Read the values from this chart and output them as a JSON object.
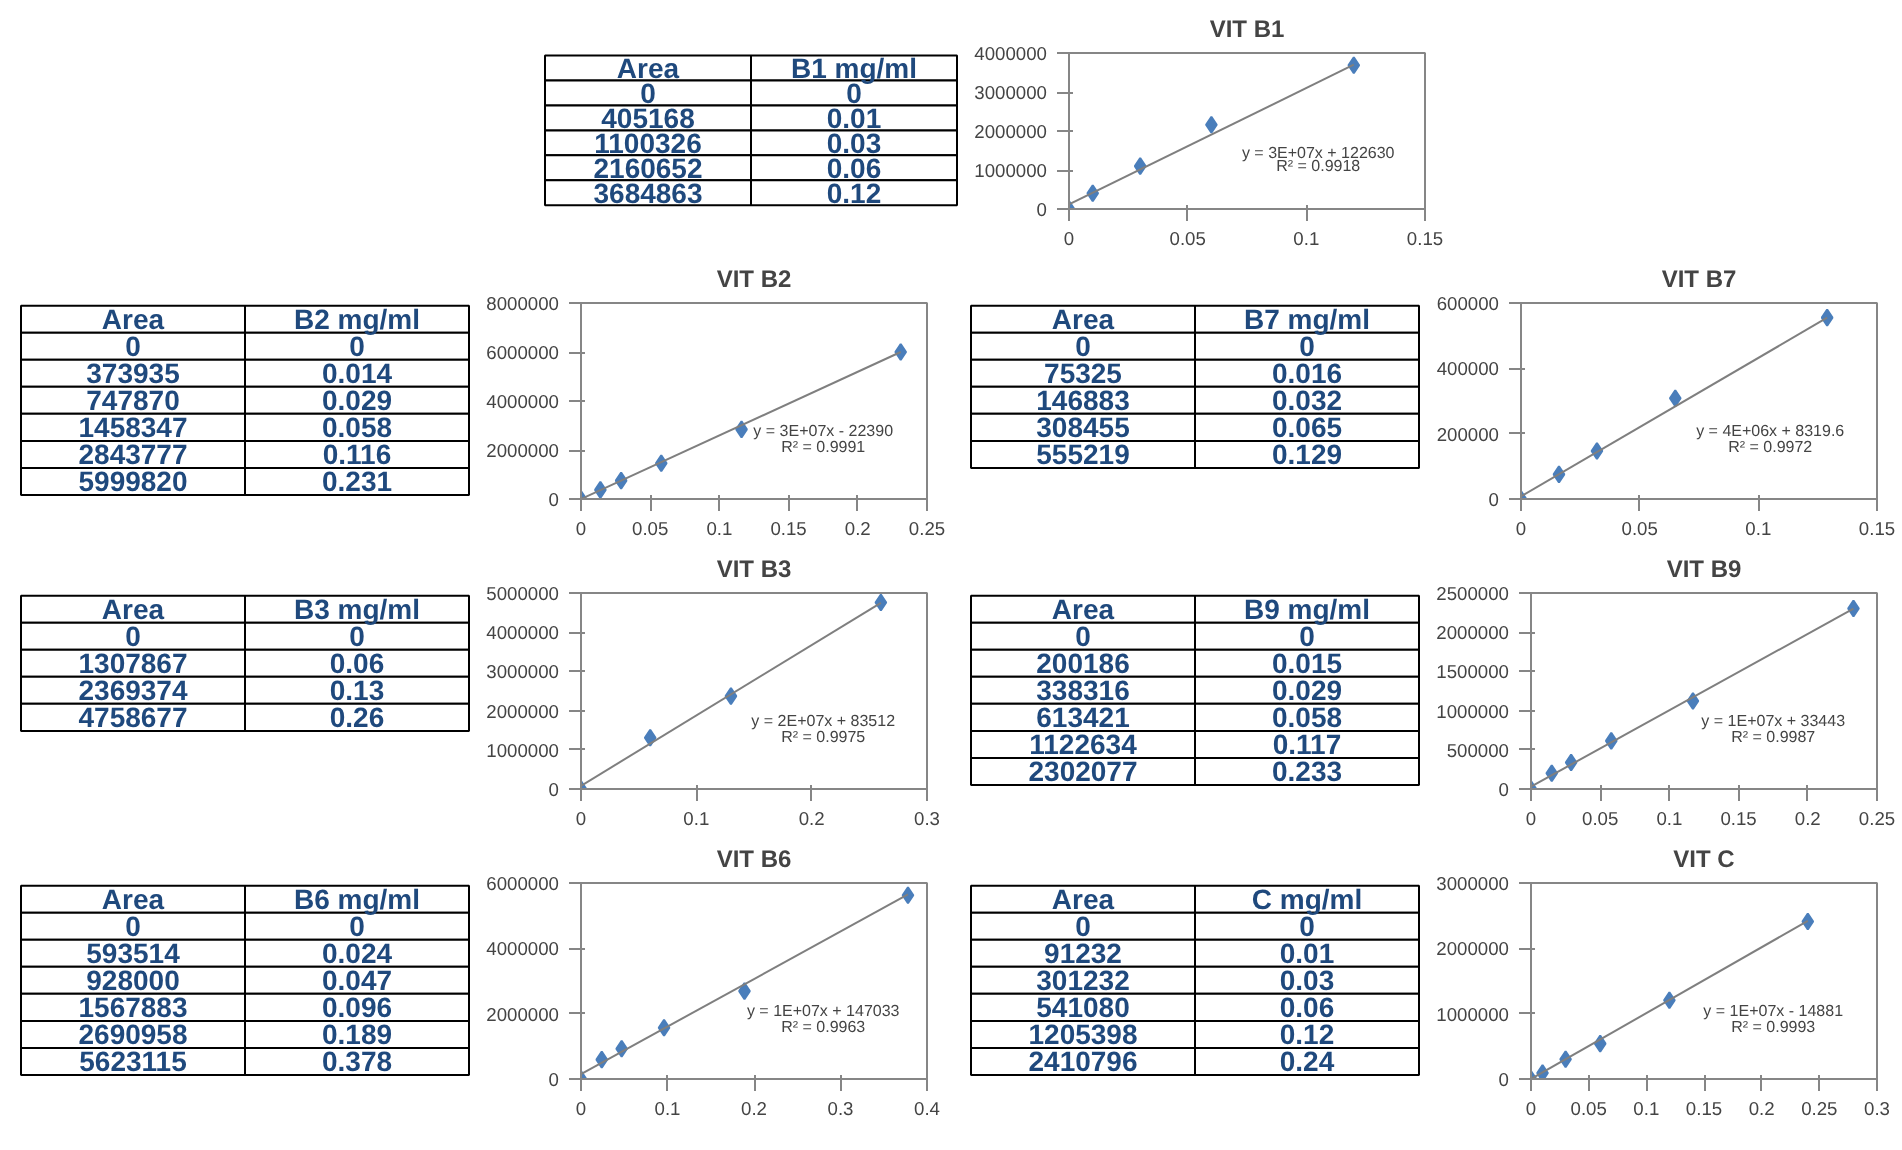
{
  "chart_data": [
    {
      "type": "other",
      "categories": [
        "Area",
        "B1 mg/ml"
      ],
      "annotations": [
        "0",
        "0",
        "405168",
        "0.01",
        "1100326",
        "0.03",
        "2160652",
        "0.06",
        "3684863",
        "0.12"
      ]
    },
    {
      "type": "scatter",
      "title": "VIT B1",
      "xlim": [
        0,
        0.15
      ],
      "xticks": [
        0,
        0.05,
        0.1,
        0.15
      ],
      "ylim": [
        0,
        4000000
      ],
      "yticks": [
        0,
        1000000,
        2000000,
        3000000,
        4000000
      ],
      "grid": false,
      "annotations": [
        "y = 3E+07x + 122630",
        "R² = 0.9918"
      ],
      "series": [
        {
          "type": "scatter",
          "marker": "diamond",
          "color": "#4a7ebb",
          "x": [
            0,
            0.01,
            0.03,
            0.06,
            0.12
          ],
          "values": [
            0,
            405168,
            1100326,
            2160652,
            3684863
          ]
        },
        {
          "type": "line",
          "color": "#7f7f7f",
          "x": [
            0,
            0.12
          ],
          "values": [
            120000,
            3700000
          ]
        }
      ]
    },
    {
      "type": "other",
      "categories": [
        "Area",
        "B2 mg/ml"
      ],
      "annotations": [
        "0",
        "0",
        "373935",
        "0.014",
        "747870",
        "0.029",
        "1458347",
        "0.058",
        "2843777",
        "0.116",
        "5999820",
        "0.231"
      ]
    },
    {
      "type": "scatter",
      "title": "VIT B2",
      "xlim": [
        0,
        0.25
      ],
      "xticks": [
        0,
        0.05,
        0.1,
        0.15,
        0.2,
        0.25
      ],
      "ylim": [
        0,
        8000000
      ],
      "yticks": [
        0,
        2000000,
        4000000,
        6000000,
        8000000
      ],
      "grid": false,
      "annotations": [
        "y = 3E+07x - 22390",
        "R² = 0.9991"
      ],
      "series": [
        {
          "type": "scatter",
          "marker": "diamond",
          "color": "#4a7ebb",
          "x": [
            0,
            0.014,
            0.029,
            0.058,
            0.116,
            0.231
          ],
          "values": [
            0,
            373935,
            747870,
            1458347,
            2843777,
            5999820
          ]
        },
        {
          "type": "line",
          "color": "#7f7f7f",
          "x": [
            0,
            0.231
          ],
          "values": [
            0,
            6000000
          ]
        }
      ]
    },
    {
      "type": "other",
      "categories": [
        "Area",
        "B7 mg/ml"
      ],
      "annotations": [
        "0",
        "0",
        "75325",
        "0.016",
        "146883",
        "0.032",
        "308455",
        "0.065",
        "555219",
        "0.129"
      ]
    },
    {
      "type": "scatter",
      "title": "VIT B7",
      "xlim": [
        0,
        0.15
      ],
      "xticks": [
        0,
        0.05,
        0.1,
        0.15
      ],
      "ylim": [
        0,
        600000
      ],
      "yticks": [
        0,
        200000,
        400000,
        600000
      ],
      "grid": false,
      "annotations": [
        "y = 4E+06x + 8319.6",
        "R² = 0.9972"
      ],
      "series": [
        {
          "type": "scatter",
          "marker": "diamond",
          "color": "#4a7ebb",
          "x": [
            0,
            0.016,
            0.032,
            0.065,
            0.129
          ],
          "values": [
            0,
            75325,
            146883,
            308455,
            555219
          ]
        },
        {
          "type": "line",
          "color": "#7f7f7f",
          "x": [
            0,
            0.129
          ],
          "values": [
            8000,
            555000
          ]
        }
      ]
    },
    {
      "type": "other",
      "categories": [
        "Area",
        "B3 mg/ml"
      ],
      "annotations": [
        "0",
        "0",
        "1307867",
        "0.06",
        "2369374",
        "0.13",
        "4758677",
        "0.26"
      ]
    },
    {
      "type": "scatter",
      "title": "VIT B3",
      "xlim": [
        0,
        0.3
      ],
      "xticks": [
        0,
        0.1,
        0.2,
        0.3
      ],
      "ylim": [
        0,
        5000000
      ],
      "yticks": [
        0,
        1000000,
        2000000,
        3000000,
        4000000,
        5000000
      ],
      "grid": false,
      "annotations": [
        "y = 2E+07x + 83512",
        "R² = 0.9975"
      ],
      "series": [
        {
          "type": "scatter",
          "marker": "diamond",
          "color": "#4a7ebb",
          "x": [
            0,
            0.06,
            0.13,
            0.26
          ],
          "values": [
            0,
            1307867,
            2369374,
            4758677
          ]
        },
        {
          "type": "line",
          "color": "#7f7f7f",
          "x": [
            0,
            0.26
          ],
          "values": [
            80000,
            4750000
          ]
        }
      ]
    },
    {
      "type": "other",
      "categories": [
        "Area",
        "B9 mg/ml"
      ],
      "annotations": [
        "0",
        "0",
        "200186",
        "0.015",
        "338316",
        "0.029",
        "613421",
        "0.058",
        "1122634",
        "0.117",
        "2302077",
        "0.233"
      ]
    },
    {
      "type": "scatter",
      "title": "VIT B9",
      "xlim": [
        0,
        0.25
      ],
      "xticks": [
        0,
        0.05,
        0.1,
        0.15,
        0.2,
        0.25
      ],
      "ylim": [
        0,
        2500000
      ],
      "yticks": [
        0,
        500000,
        1000000,
        1500000,
        2000000,
        2500000
      ],
      "grid": false,
      "annotations": [
        "y = 1E+07x + 33443",
        "R² = 0.9987"
      ],
      "series": [
        {
          "type": "scatter",
          "marker": "diamond",
          "color": "#4a7ebb",
          "x": [
            0,
            0.015,
            0.029,
            0.058,
            0.117,
            0.233
          ],
          "values": [
            0,
            200186,
            338316,
            613421,
            1122634,
            2302077
          ]
        },
        {
          "type": "line",
          "color": "#7f7f7f",
          "x": [
            0,
            0.233
          ],
          "values": [
            30000,
            2300000
          ]
        }
      ]
    },
    {
      "type": "other",
      "categories": [
        "Area",
        "B6 mg/ml"
      ],
      "annotations": [
        "0",
        "0",
        "593514",
        "0.024",
        "928000",
        "0.047",
        "1567883",
        "0.096",
        "2690958",
        "0.189",
        "5623115",
        "0.378"
      ]
    },
    {
      "type": "scatter",
      "title": "VIT B6",
      "xlim": [
        0,
        0.4
      ],
      "xticks": [
        0,
        0.1,
        0.2,
        0.3,
        0.4
      ],
      "ylim": [
        0,
        6000000
      ],
      "yticks": [
        0,
        2000000,
        4000000,
        6000000
      ],
      "grid": false,
      "annotations": [
        "y = 1E+07x + 147033",
        "R² = 0.9963"
      ],
      "series": [
        {
          "type": "scatter",
          "marker": "diamond",
          "color": "#4a7ebb",
          "x": [
            0,
            0.024,
            0.047,
            0.096,
            0.189,
            0.378
          ],
          "values": [
            0,
            593514,
            928000,
            1567883,
            2690958,
            5623115
          ]
        },
        {
          "type": "line",
          "color": "#7f7f7f",
          "x": [
            0,
            0.378
          ],
          "values": [
            150000,
            5650000
          ]
        }
      ]
    },
    {
      "type": "other",
      "categories": [
        "Area",
        "C mg/ml"
      ],
      "annotations": [
        "0",
        "0",
        "91232",
        "0.01",
        "301232",
        "0.03",
        "541080",
        "0.06",
        "1205398",
        "0.12",
        "2410796",
        "0.24"
      ]
    },
    {
      "type": "scatter",
      "title": "VIT C",
      "xlim": [
        0,
        0.3
      ],
      "xticks": [
        0,
        0.05,
        0.1,
        0.15,
        0.2,
        0.25,
        0.3
      ],
      "ylim": [
        0,
        3000000
      ],
      "yticks": [
        0,
        1000000,
        2000000,
        3000000
      ],
      "grid": false,
      "annotations": [
        "y = 1E+07x - 14881",
        "R² = 0.9993"
      ],
      "series": [
        {
          "type": "scatter",
          "marker": "diamond",
          "color": "#4a7ebb",
          "x": [
            0,
            0.01,
            0.03,
            0.06,
            0.12,
            0.24
          ],
          "values": [
            0,
            91232,
            301232,
            541080,
            1205398,
            2410796
          ]
        },
        {
          "type": "line",
          "color": "#7f7f7f",
          "x": [
            0,
            0.24
          ],
          "values": [
            0,
            2420000
          ]
        }
      ]
    }
  ]
}
